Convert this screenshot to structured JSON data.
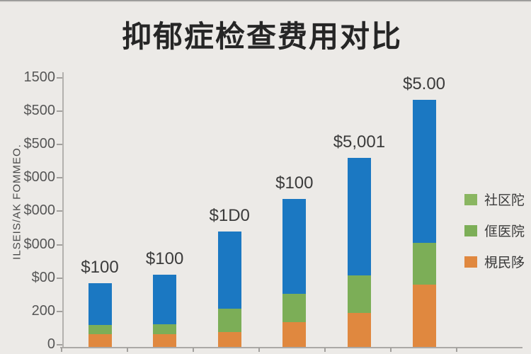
{
  "title": "抑郁症检查费用对比",
  "y_axis": {
    "label": "ILSEIS/AK FOMMEO.",
    "ticks": [
      "1500",
      "$500",
      "$500",
      "$000",
      "$000",
      "$000",
      "$00",
      "200",
      "0"
    ]
  },
  "x_axis": {
    "tick_count": 7,
    "category_labels_visible": false
  },
  "legend": {
    "position": "right",
    "items": [
      {
        "label": "社区陀",
        "color": "#8ab661"
      },
      {
        "label": "㑌医院",
        "color": "#7cae57"
      },
      {
        "label": "梘民陊",
        "color": "#e0883f"
      }
    ]
  },
  "colors": {
    "blue": "#1b78c2",
    "green": "#7cae57",
    "orange": "#e0883f",
    "background": "#eceae7",
    "title_text": "#262626",
    "tick_text": "#565656",
    "axis_line": "#aba9a6"
  },
  "chart_data": {
    "type": "bar",
    "stacked": true,
    "title": "抑郁症检查费用对比",
    "categories": [
      "",
      "",
      "",
      "",
      "",
      ""
    ],
    "series": [
      {
        "name": "梘民陊 (orange, bottom)",
        "color": "#e0883f",
        "values": [
          70,
          70,
          85,
          140,
          190,
          350
        ]
      },
      {
        "name": "社区陀 / 㑌医院 (green, middle)",
        "color": "#7cae57",
        "values": [
          50,
          55,
          130,
          160,
          210,
          235
        ]
      },
      {
        "name": "unlabeled (blue, top)",
        "color": "#1b78c2",
        "values": [
          235,
          280,
          435,
          535,
          660,
          805
        ]
      }
    ],
    "totals_estimated": [
      355,
      405,
      650,
      835,
      1060,
      1390
    ],
    "value_labels": [
      "$100",
      "$100",
      "$1D0",
      "$100",
      "$5,001",
      "$5.00"
    ],
    "ylabel": "ILSEIS/AK FOMMEO.",
    "ylim": [
      0,
      1500
    ],
    "grid": false,
    "legend_position": "right"
  }
}
